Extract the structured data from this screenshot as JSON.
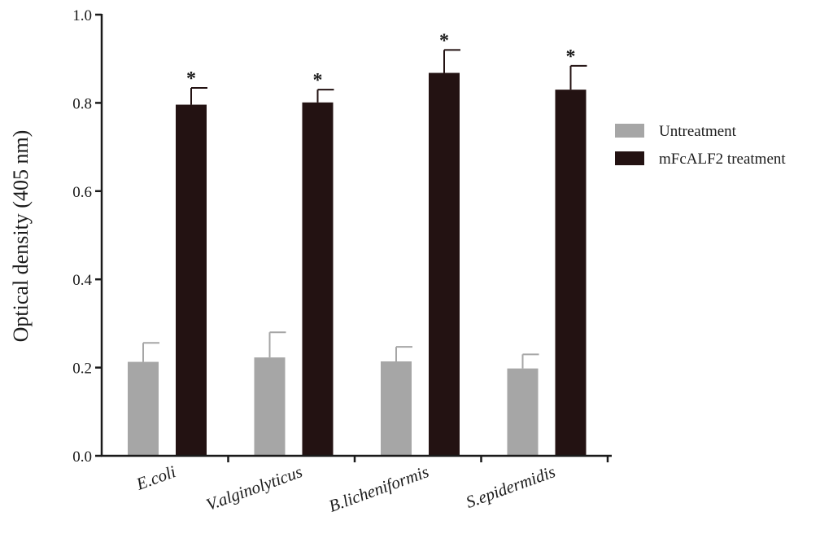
{
  "chart_data": {
    "type": "bar",
    "title": "",
    "xlabel": "",
    "ylabel": "Optical density (405 nm)",
    "ylim": [
      0,
      1.0
    ],
    "yticks": [
      0.0,
      0.2,
      0.4,
      0.6,
      0.8,
      1.0
    ],
    "ytick_labels": [
      "0.0",
      "0.2",
      "0.4",
      "0.6",
      "0.8",
      "1.0"
    ],
    "categories": [
      "E.coli",
      "V.alginolyticus",
      "B.licheniformis",
      "S.epidermidis"
    ],
    "series": [
      {
        "name": "Untreatment",
        "color": "#a6a6a6",
        "values": [
          0.213,
          0.223,
          0.214,
          0.198
        ],
        "errors": [
          0.043,
          0.057,
          0.033,
          0.032
        ],
        "annotations": [
          "",
          "",
          "",
          ""
        ]
      },
      {
        "name": "mFcALF2 treatment",
        "color": "#231212",
        "values": [
          0.796,
          0.801,
          0.868,
          0.83
        ],
        "errors": [
          0.038,
          0.029,
          0.052,
          0.054
        ],
        "annotations": [
          "*",
          "*",
          "*",
          "*"
        ]
      }
    ],
    "grid": false,
    "legend_position": "right"
  }
}
